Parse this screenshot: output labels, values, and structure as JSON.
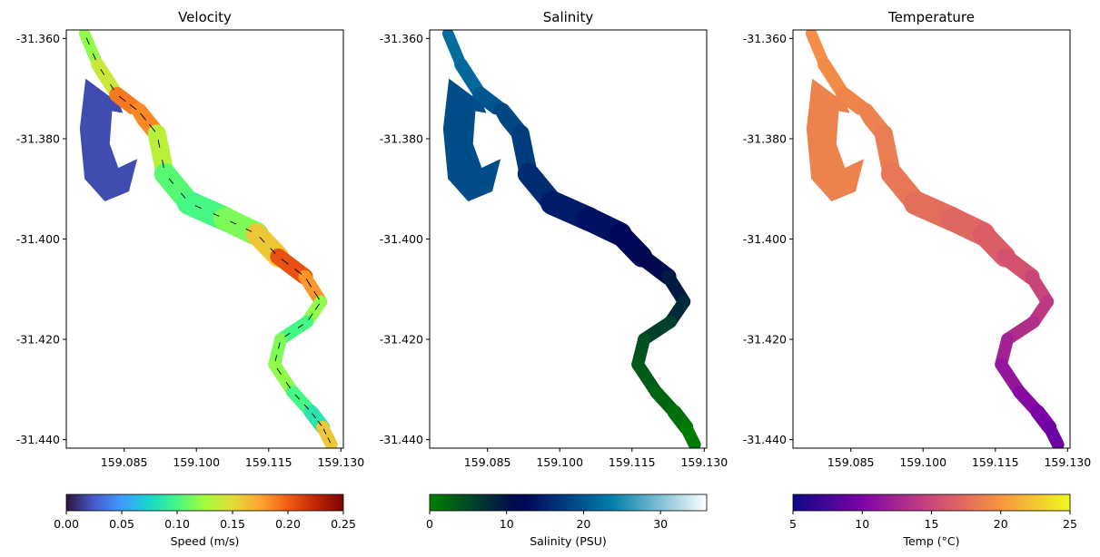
{
  "chart_data": [
    {
      "type": "heatmap",
      "title": "Velocity",
      "x_ticks": [
        "159.085",
        "159.100",
        "159.115",
        "159.130"
      ],
      "y_ticks": [
        "-31.360",
        "-31.380",
        "-31.400",
        "-31.420",
        "-31.440"
      ],
      "xlim": [
        159.073,
        159.1305
      ],
      "ylim": [
        -31.4417,
        -31.3583
      ],
      "colorbar": {
        "label": "Speed (m/s)",
        "range": [
          0,
          0.25
        ],
        "ticks": [
          "0.00",
          "0.05",
          "0.10",
          "0.15",
          "0.20",
          "0.25"
        ],
        "colormap": "turbo"
      },
      "quiver": true
    },
    {
      "type": "heatmap",
      "title": "Salinity",
      "x_ticks": [
        "159.085",
        "159.100",
        "159.115",
        "159.130"
      ],
      "y_ticks": [
        "-31.360",
        "-31.380",
        "-31.400",
        "-31.420",
        "-31.440"
      ],
      "xlim": [
        159.073,
        159.1305
      ],
      "ylim": [
        -31.4417,
        -31.3583
      ],
      "colorbar": {
        "label": "Salinity (PSU)",
        "range": [
          0,
          36
        ],
        "ticks": [
          "0",
          "10",
          "20",
          "30"
        ],
        "colormap": "ocean"
      }
    },
    {
      "type": "heatmap",
      "title": "Temperature",
      "x_ticks": [
        "159.085",
        "159.100",
        "159.115",
        "159.130"
      ],
      "y_ticks": [
        "-31.360",
        "-31.380",
        "-31.400",
        "-31.420",
        "-31.440"
      ],
      "xlim": [
        159.073,
        159.1305
      ],
      "ylim": [
        -31.4417,
        -31.3583
      ],
      "colorbar": {
        "label": "Temp (°C)",
        "range": [
          5,
          25
        ],
        "ticks": [
          "5",
          "10",
          "15",
          "20",
          "25"
        ],
        "colormap": "plasma"
      }
    }
  ],
  "river": {
    "centerline": [
      [
        159.0768,
        -31.359
      ],
      [
        159.0795,
        -31.3652
      ],
      [
        159.0835,
        -31.3712
      ],
      [
        159.088,
        -31.3745
      ],
      [
        159.0918,
        -31.379
      ],
      [
        159.0935,
        -31.387
      ],
      [
        159.0985,
        -31.3928
      ],
      [
        159.106,
        -31.396
      ],
      [
        159.1125,
        -31.399
      ],
      [
        159.117,
        -31.4035
      ],
      [
        159.1225,
        -31.4075
      ],
      [
        159.1258,
        -31.4125
      ],
      [
        159.123,
        -31.4165
      ],
      [
        159.1175,
        -31.42
      ],
      [
        159.1162,
        -31.425
      ],
      [
        159.12,
        -31.4305
      ],
      [
        159.1238,
        -31.4345
      ],
      [
        159.1262,
        -31.4375
      ],
      [
        159.128,
        -31.441
      ]
    ],
    "width_deg": [
      0.0022,
      0.0025,
      0.003,
      0.0034,
      0.0036,
      0.004,
      0.005,
      0.005,
      0.0048,
      0.004,
      0.0028,
      0.0026,
      0.0026,
      0.0026,
      0.0026,
      0.0026,
      0.0028,
      0.0032,
      0.002
    ],
    "speed": [
      0.13,
      0.11,
      0.17,
      0.21,
      0.16,
      0.11,
      0.1,
      0.1,
      0.13,
      0.19,
      0.22,
      0.14,
      0.1,
      0.1,
      0.13,
      0.11,
      0.09,
      0.08,
      0.24
    ],
    "salinity": [
      22,
      22,
      21,
      19,
      18,
      17,
      15,
      14,
      13,
      12,
      10,
      9,
      7,
      5,
      4,
      3,
      2,
      1,
      0
    ],
    "temperature": [
      19.5,
      19.5,
      19.2,
      18.8,
      18.6,
      18.3,
      17.8,
      17.3,
      16.8,
      16.2,
      15.2,
      14.4,
      13.6,
      12.7,
      11.8,
      11.0,
      10.2,
      9.4,
      9.0
    ],
    "west_basin": [
      [
        159.077,
        -31.368
      ],
      [
        159.084,
        -31.373
      ],
      [
        159.088,
        -31.383
      ],
      [
        159.086,
        -31.3905
      ],
      [
        159.081,
        -31.3925
      ],
      [
        159.0768,
        -31.388
      ],
      [
        159.0758,
        -31.378
      ]
    ],
    "island": [
      [
        159.0825,
        -31.3745
      ],
      [
        159.0868,
        -31.3752
      ],
      [
        159.0895,
        -31.38
      ],
      [
        159.0878,
        -31.384
      ],
      [
        159.0838,
        -31.3858
      ],
      [
        159.082,
        -31.381
      ]
    ],
    "basin_speed": 0.02,
    "basin_salinity": 19,
    "basin_temperature": 18.8
  }
}
